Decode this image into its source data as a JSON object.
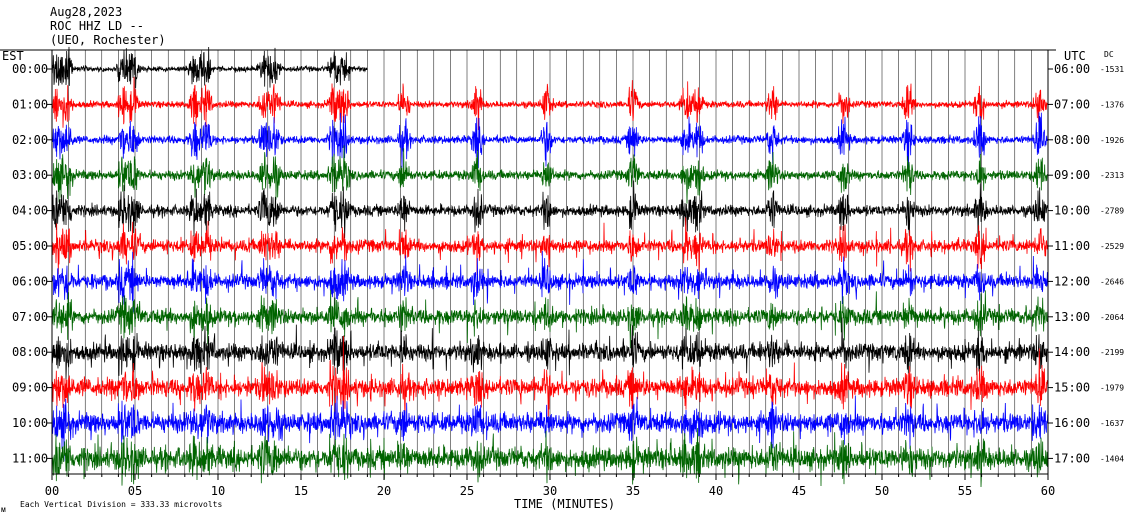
{
  "header": {
    "line1": "Aug28,2023",
    "line2": "ROC HHZ LD --",
    "line3": "(UEO, Rochester)"
  },
  "left_axis_title": "EST",
  "right_axis_title": "UTC",
  "dc_title": "DC",
  "footer": {
    "scale_note": "Each Vertical Division =  333.33 microvolts",
    "corner_mark": "ᴍ"
  },
  "chart_data": {
    "type": "line",
    "xlabel": "TIME (MINUTES)",
    "xlim": [
      0,
      60
    ],
    "x_ticks": [
      0,
      5,
      10,
      15,
      20,
      25,
      30,
      35,
      40,
      45,
      50,
      55,
      60
    ],
    "x_tick_labels": [
      "00",
      "05",
      "10",
      "15",
      "20",
      "25",
      "30",
      "35",
      "40",
      "45",
      "50",
      "55",
      "60"
    ],
    "trace_colors": [
      "#000000",
      "#ff0000",
      "#0000ff",
      "#006400"
    ],
    "rows": [
      {
        "est": "00:00",
        "utc": "06:00",
        "dc": "-1531",
        "color": "#000000",
        "end_minute": 19
      },
      {
        "est": "01:00",
        "utc": "07:00",
        "dc": "-1376",
        "color": "#ff0000"
      },
      {
        "est": "02:00",
        "utc": "08:00",
        "dc": "-1926",
        "color": "#0000ff"
      },
      {
        "est": "03:00",
        "utc": "09:00",
        "dc": "-2313",
        "color": "#006400"
      },
      {
        "est": "04:00",
        "utc": "10:00",
        "dc": "-2789",
        "color": "#000000"
      },
      {
        "est": "05:00",
        "utc": "11:00",
        "dc": "-2529",
        "color": "#ff0000"
      },
      {
        "est": "06:00",
        "utc": "12:00",
        "dc": "-2646",
        "color": "#0000ff"
      },
      {
        "est": "07:00",
        "utc": "13:00",
        "dc": "-2064",
        "color": "#006400"
      },
      {
        "est": "08:00",
        "utc": "14:00",
        "dc": "-2199",
        "color": "#000000"
      },
      {
        "est": "09:00",
        "utc": "15:00",
        "dc": "-1979",
        "color": "#ff0000"
      },
      {
        "est": "10:00",
        "utc": "16:00",
        "dc": "-1637",
        "color": "#0000ff"
      },
      {
        "est": "11:00",
        "utc": "17:00",
        "dc": "-1404",
        "color": "#006400"
      }
    ]
  }
}
